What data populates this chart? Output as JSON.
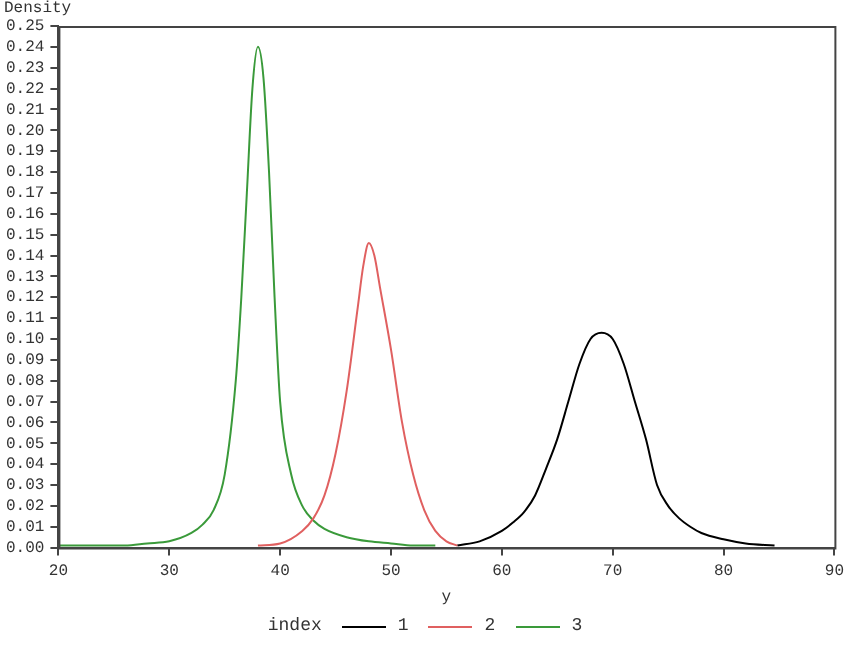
{
  "chart_data": {
    "type": "line",
    "xlabel": "y",
    "ylabel": "Density",
    "legend_title": "index",
    "legend": "bottom",
    "marker": "none",
    "line_style": "solid",
    "grid": false,
    "xlim": [
      20,
      90
    ],
    "xticks": [
      20,
      30,
      40,
      50,
      60,
      70,
      80,
      90
    ],
    "ylim": [
      0,
      0.25
    ],
    "yticks": [
      {
        "value": 0,
        "label": "0.00"
      },
      {
        "value": 0.01,
        "label": "0.01"
      },
      {
        "value": 0.02,
        "label": "0.02"
      },
      {
        "value": 0.03,
        "label": "0.03"
      },
      {
        "value": 0.04,
        "label": "0.04"
      },
      {
        "value": 0.05,
        "label": "0.05"
      },
      {
        "value": 0.06,
        "label": "0.06"
      },
      {
        "value": 0.07,
        "label": "0.07"
      },
      {
        "value": 0.08,
        "label": "0.08"
      },
      {
        "value": 0.09,
        "label": "0.09"
      },
      {
        "value": 0.1,
        "label": "0.10"
      },
      {
        "value": 0.11,
        "label": "0.11"
      },
      {
        "value": 0.12,
        "label": "0.12"
      },
      {
        "value": 0.13,
        "label": "0.13"
      },
      {
        "value": 0.14,
        "label": "0.14"
      },
      {
        "value": 0.15,
        "label": "0.15"
      },
      {
        "value": 0.16,
        "label": "0.16"
      },
      {
        "value": 0.17,
        "label": "0.17"
      },
      {
        "value": 0.18,
        "label": "0.18"
      },
      {
        "value": 0.19,
        "label": "0.19"
      },
      {
        "value": 0.2,
        "label": "0.20"
      },
      {
        "value": 0.21,
        "label": "0.21"
      },
      {
        "value": 0.22,
        "label": "0.22"
      },
      {
        "value": 0.23,
        "label": "0.23"
      },
      {
        "value": 0.24,
        "label": "0.24"
      },
      {
        "value": 0.25,
        "label": "0.25"
      }
    ],
    "series": [
      {
        "name": "1",
        "color": "#000000",
        "x": [
          56,
          58,
          60,
          61,
          62,
          63,
          64,
          65,
          66,
          67,
          68,
          69,
          70,
          71,
          72,
          73,
          74,
          75,
          76,
          77,
          78,
          80,
          82,
          84.6
        ],
        "values": [
          0.001,
          0.003,
          0.008,
          0.012,
          0.017,
          0.025,
          0.038,
          0.052,
          0.07,
          0.088,
          0.1,
          0.103,
          0.1,
          0.088,
          0.07,
          0.052,
          0.03,
          0.02,
          0.014,
          0.01,
          0.007,
          0.004,
          0.002,
          0.001
        ]
      },
      {
        "name": "2",
        "color": "#e06060",
        "x": [
          38,
          40,
          42,
          43,
          44,
          45,
          46,
          47,
          47.5,
          48,
          48.5,
          49,
          50,
          51,
          52,
          53,
          54,
          55,
          56
        ],
        "values": [
          0.001,
          0.002,
          0.008,
          0.014,
          0.025,
          0.045,
          0.075,
          0.115,
          0.135,
          0.146,
          0.14,
          0.125,
          0.095,
          0.06,
          0.035,
          0.018,
          0.008,
          0.003,
          0.001
        ]
      },
      {
        "name": "3",
        "color": "#3a9a3a",
        "x": [
          20,
          26,
          28,
          30,
          32,
          33,
          34,
          35,
          36,
          36.5,
          37,
          37.5,
          38,
          38.5,
          39,
          39.5,
          40,
          41,
          42,
          43,
          44,
          46,
          48,
          50,
          52,
          54
        ],
        "values": [
          0.001,
          0.001,
          0.002,
          0.003,
          0.007,
          0.011,
          0.018,
          0.035,
          0.08,
          0.12,
          0.17,
          0.22,
          0.24,
          0.225,
          0.18,
          0.12,
          0.07,
          0.035,
          0.02,
          0.013,
          0.009,
          0.005,
          0.003,
          0.002,
          0.001,
          0.001
        ]
      }
    ]
  }
}
